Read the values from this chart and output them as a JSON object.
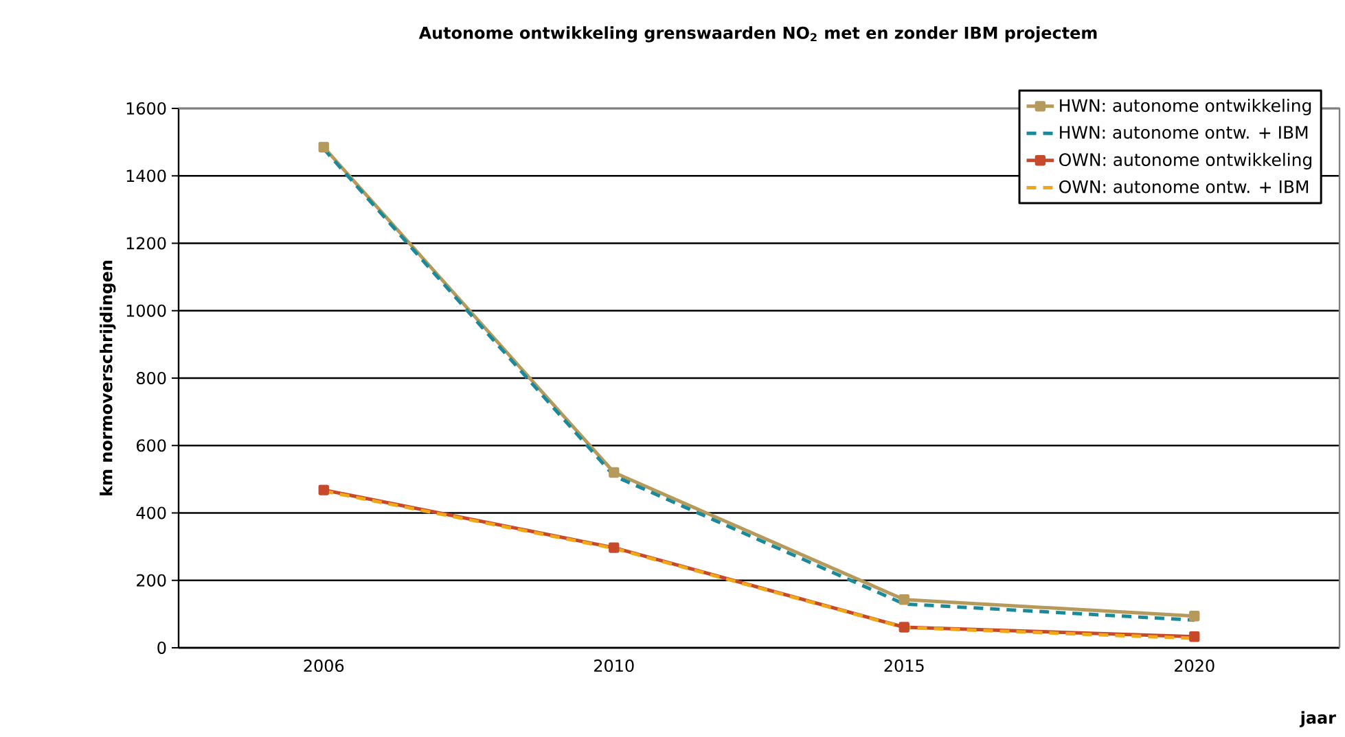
{
  "chart_data": {
    "type": "line",
    "title": "Autonome ontwikkeling grenswaarden NO$_{2}$  met en zonder IBM projectem",
    "xlabel": "jaar",
    "ylabel": "km normoverschrijdingen",
    "categories": [
      "2006",
      "2010",
      "2015",
      "2020"
    ],
    "series": [
      {
        "name": "HWN: autonome ontwikkeling",
        "color": "#b59a5c",
        "values": [
          1485,
          520,
          143,
          94
        ],
        "marker": "square",
        "line_style": "solid"
      },
      {
        "name": "HWN: autonome ontw. + IBM",
        "color": "#1a8a9a",
        "values": [
          1480,
          510,
          130,
          82
        ],
        "marker": "none",
        "line_style": "dashed"
      },
      {
        "name": "OWN: autonome ontwikkeling",
        "color": "#c8492a",
        "values": [
          468,
          297,
          61,
          33
        ],
        "marker": "square",
        "line_style": "solid"
      },
      {
        "name": "OWN: autonome ontw. + IBM",
        "color": "#f0a818",
        "values": [
          465,
          295,
          60,
          28
        ],
        "marker": "none",
        "line_style": "dashed"
      }
    ],
    "ylim": [
      0,
      1600
    ],
    "yticks": [
      0,
      200,
      400,
      600,
      800,
      1000,
      1200,
      1400,
      1600
    ],
    "grid": "y",
    "legend": "top right"
  }
}
